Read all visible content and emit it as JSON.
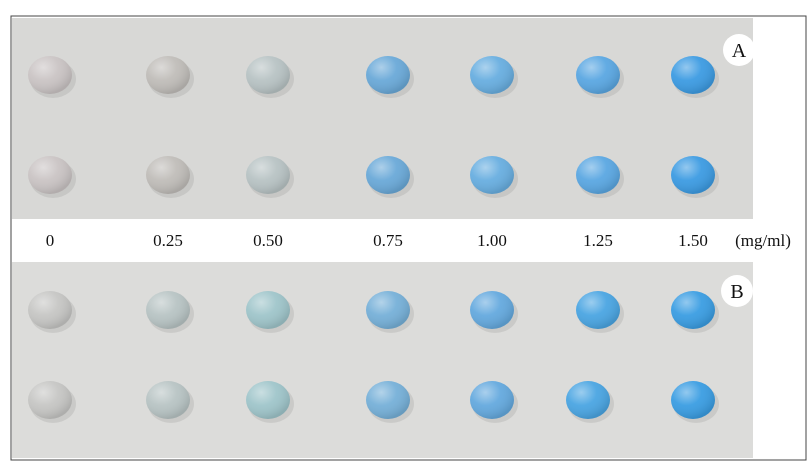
{
  "panels": [
    {
      "label": "A"
    },
    {
      "label": "B"
    }
  ],
  "concentrations": [
    "0",
    "0.25",
    "0.50",
    "0.75",
    "1.00",
    "1.25",
    "1.50"
  ],
  "unit": "(mg/ml)"
}
